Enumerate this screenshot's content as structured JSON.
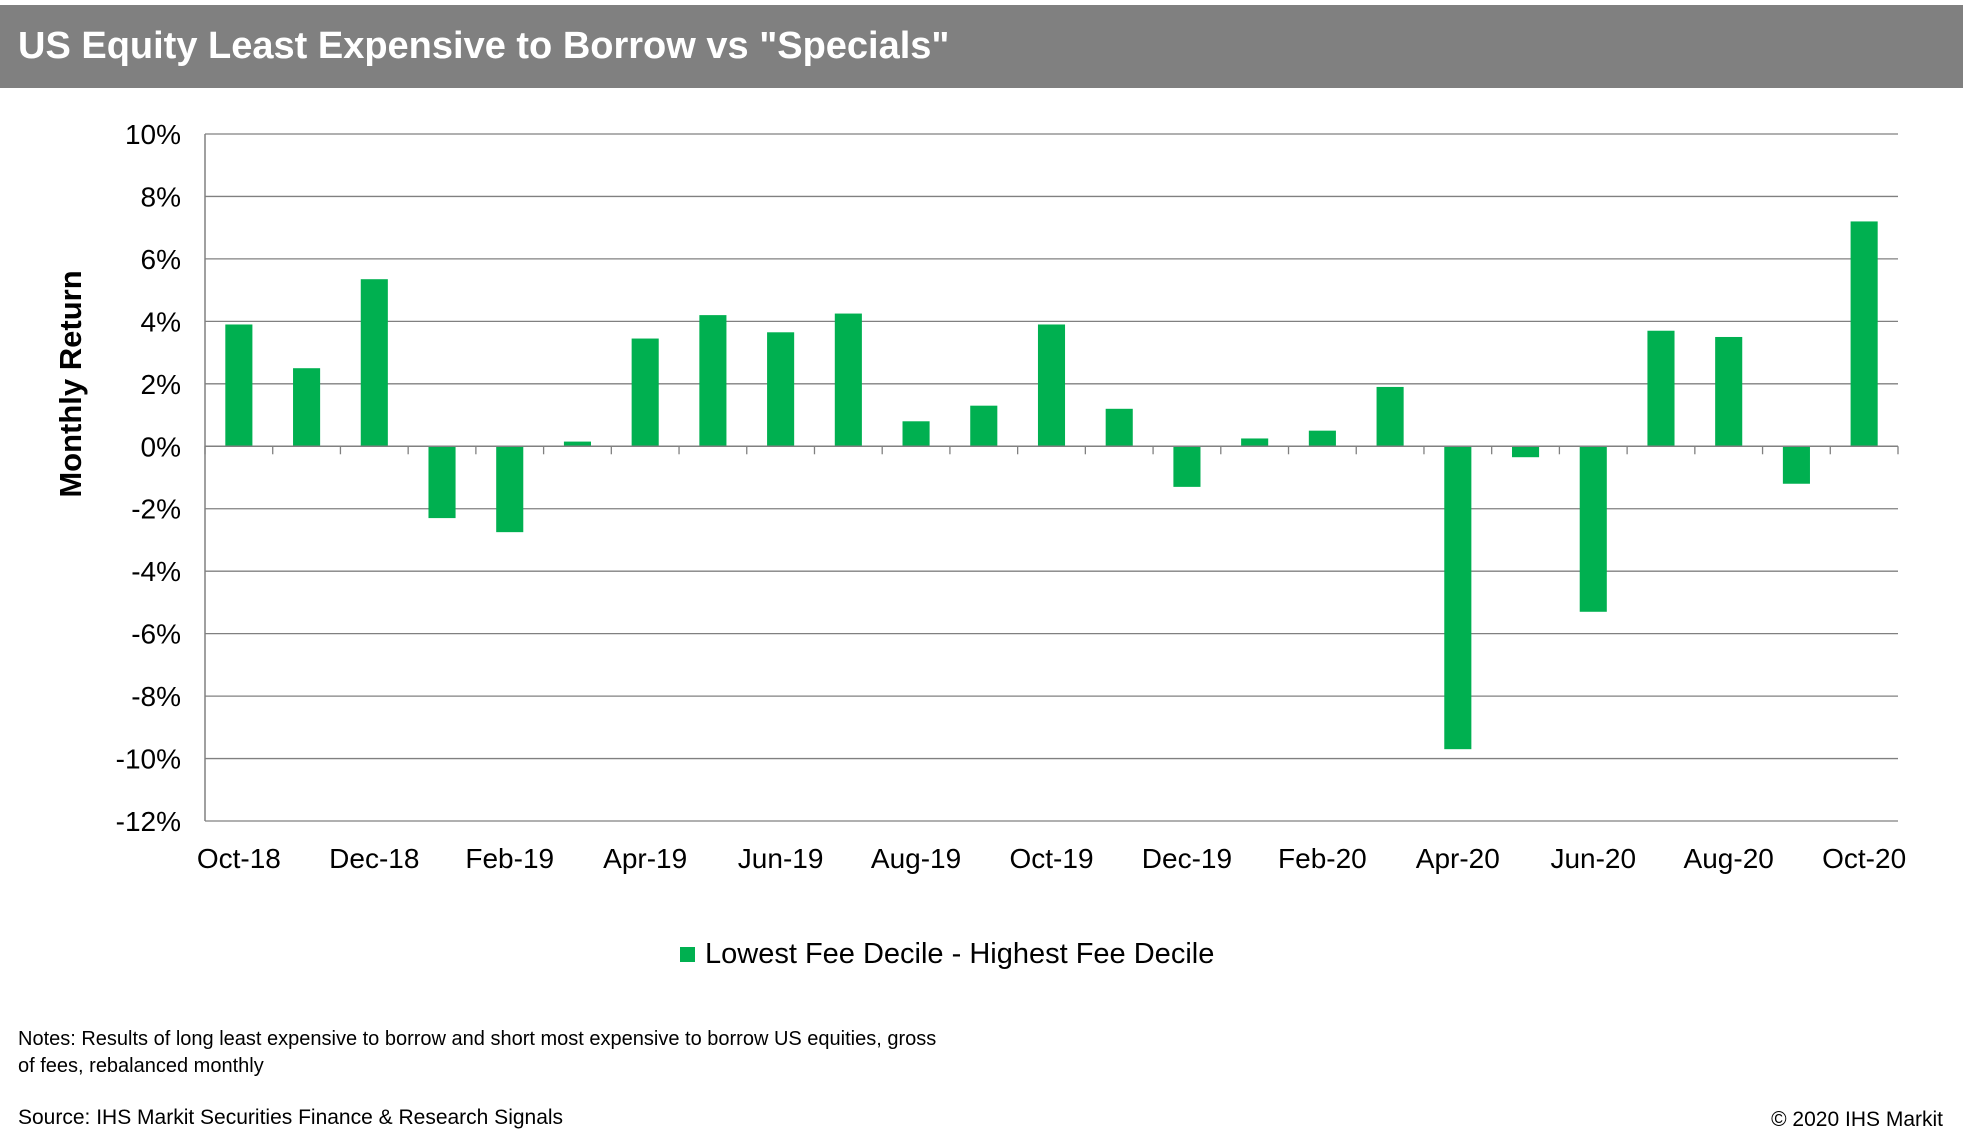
{
  "header": {
    "title": "US Equity Least Expensive to Borrow vs \"Specials\""
  },
  "chart_data": {
    "type": "bar",
    "ylabel": "Monthly Return",
    "ylim": [
      -12,
      10
    ],
    "yticks": [
      10,
      8,
      6,
      4,
      2,
      0,
      -2,
      -4,
      -6,
      -8,
      -10,
      -12
    ],
    "ytick_labels": [
      "10%",
      "8%",
      "6%",
      "4%",
      "2%",
      "0%",
      "-2%",
      "-4%",
      "-6%",
      "-8%",
      "-10%",
      "-12%"
    ],
    "categories": [
      "Oct-18",
      "Nov-18",
      "Dec-18",
      "Jan-19",
      "Feb-19",
      "Mar-19",
      "Apr-19",
      "May-19",
      "Jun-19",
      "Jul-19",
      "Aug-19",
      "Sep-19",
      "Oct-19",
      "Nov-19",
      "Dec-19",
      "Jan-20",
      "Feb-20",
      "Mar-20",
      "Apr-20",
      "May-20",
      "Jun-20",
      "Jul-20",
      "Aug-20",
      "Sep-20",
      "Oct-20"
    ],
    "xtick_labels": [
      "Oct-18",
      "Dec-18",
      "Feb-19",
      "Apr-19",
      "Jun-19",
      "Aug-19",
      "Oct-19",
      "Dec-19",
      "Feb-20",
      "Apr-20",
      "Jun-20",
      "Aug-20",
      "Oct-20"
    ],
    "series": [
      {
        "name": "Lowest Fee Decile - Highest Fee Decile",
        "color": "#00b050",
        "values": [
          3.9,
          2.5,
          5.35,
          -2.3,
          -2.75,
          0.15,
          3.45,
          4.2,
          3.65,
          4.25,
          0.8,
          1.3,
          3.9,
          1.2,
          -1.3,
          0.25,
          0.5,
          1.9,
          -9.7,
          -0.35,
          -5.3,
          3.7,
          3.5,
          -1.2,
          7.2
        ]
      }
    ],
    "grid": true,
    "legend": "bottom-center"
  },
  "footer": {
    "notes": "Notes: Results of long least expensive to borrow and short most expensive to borrow US equities, gross of fees, rebalanced monthly",
    "source": "Source: IHS Markit Securities Finance & Research Signals",
    "copyright": "© 2020 IHS Markit"
  },
  "colors": {
    "title_bar": "#808080",
    "title_text": "#ffffff",
    "bar": "#00b050",
    "grid": "#808080",
    "axis": "#808080"
  }
}
